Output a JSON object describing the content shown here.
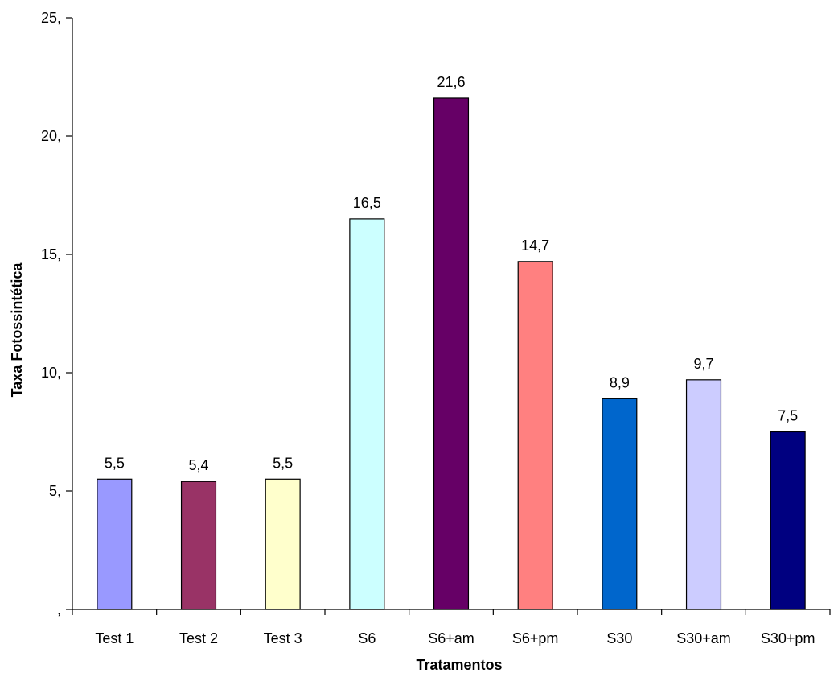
{
  "chart_data": {
    "type": "bar",
    "categories": [
      "Test 1",
      "Test 2",
      "Test 3",
      "S6",
      "S6+am",
      "S6+pm",
      "S30",
      "S30+am",
      "S30+pm"
    ],
    "values": [
      5.5,
      5.4,
      5.5,
      16.5,
      21.6,
      14.7,
      8.9,
      9.7,
      7.5
    ],
    "data_labels": [
      "5,5",
      "5,4",
      "5,5",
      "16,5",
      "21,6",
      "14,7",
      "8,9",
      "9,7",
      "7,5"
    ],
    "colors": [
      "#9999ff",
      "#993366",
      "#ffffcc",
      "#ccffff",
      "#660066",
      "#ff8080",
      "#0066cc",
      "#ccccff",
      "#000080"
    ],
    "xlabel": "Tratamentos",
    "ylabel": "Taxa Fotossintética",
    "ylim": [
      0,
      25
    ],
    "yticks": [
      0,
      5,
      10,
      15,
      20,
      25
    ],
    "ytick_labels": [
      ",",
      "5,",
      "10,",
      "15,",
      "20,",
      "25,"
    ],
    "grid": false,
    "legend": "none"
  }
}
